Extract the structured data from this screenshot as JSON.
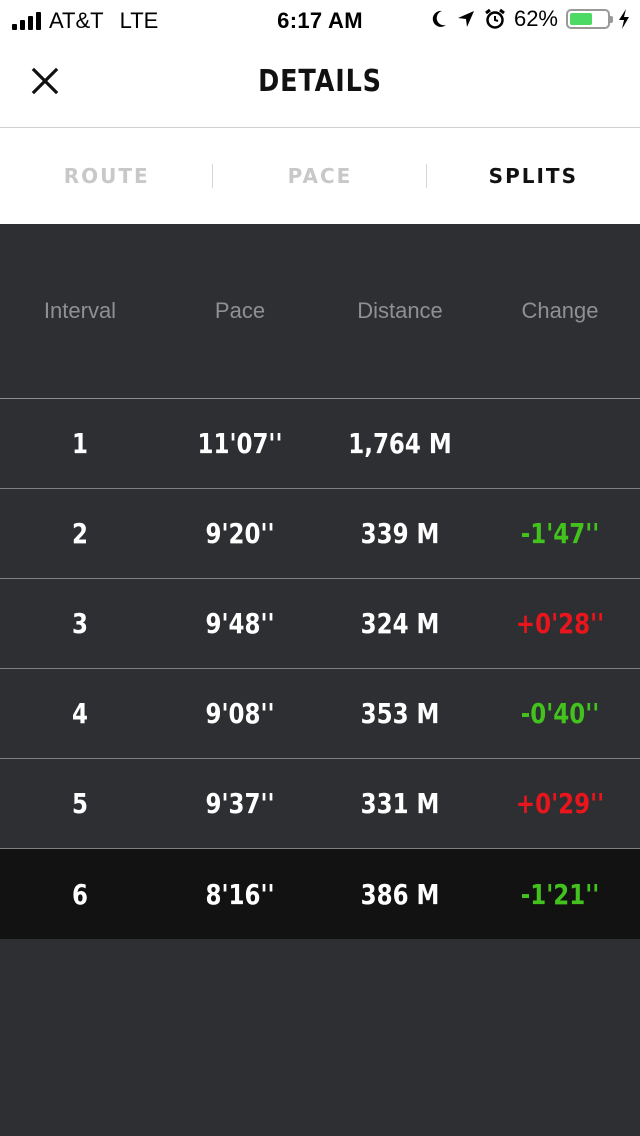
{
  "status_bar": {
    "carrier": "AT&T",
    "network": "LTE",
    "time": "6:17 AM",
    "battery_percent": "62%",
    "battery_level": 0.62,
    "battery_color": "#4cd964",
    "icons": [
      "signal-icon",
      "moon-icon",
      "location-arrow-icon",
      "alarm-icon",
      "battery-icon",
      "charging-bolt-icon"
    ]
  },
  "header": {
    "title": "DETAILS",
    "close_icon": "close-icon"
  },
  "tabs": [
    {
      "label": "ROUTE",
      "active": false
    },
    {
      "label": "PACE",
      "active": false
    },
    {
      "label": "SPLITS",
      "active": true
    }
  ],
  "splits": {
    "columns": [
      "Interval",
      "Pace",
      "Distance",
      "Change"
    ],
    "rows": [
      {
        "interval": "1",
        "pace": "11'07''",
        "distance": "1,764 M",
        "change": "",
        "trend": ""
      },
      {
        "interval": "2",
        "pace": "9'20''",
        "distance": "339 M",
        "change": "-1'47''",
        "trend": "neg"
      },
      {
        "interval": "3",
        "pace": "9'48''",
        "distance": "324 M",
        "change": "+0'28''",
        "trend": "pos"
      },
      {
        "interval": "4",
        "pace": "9'08''",
        "distance": "353 M",
        "change": "-0'40''",
        "trend": "neg"
      },
      {
        "interval": "5",
        "pace": "9'37''",
        "distance": "331 M",
        "change": "+0'29''",
        "trend": "pos"
      },
      {
        "interval": "6",
        "pace": "8'16''",
        "distance": "386 M",
        "change": "-1'21''",
        "trend": "neg"
      }
    ],
    "highlighted_row": 5,
    "colors": {
      "faster": "#43c21e",
      "slower": "#e8161c"
    }
  }
}
